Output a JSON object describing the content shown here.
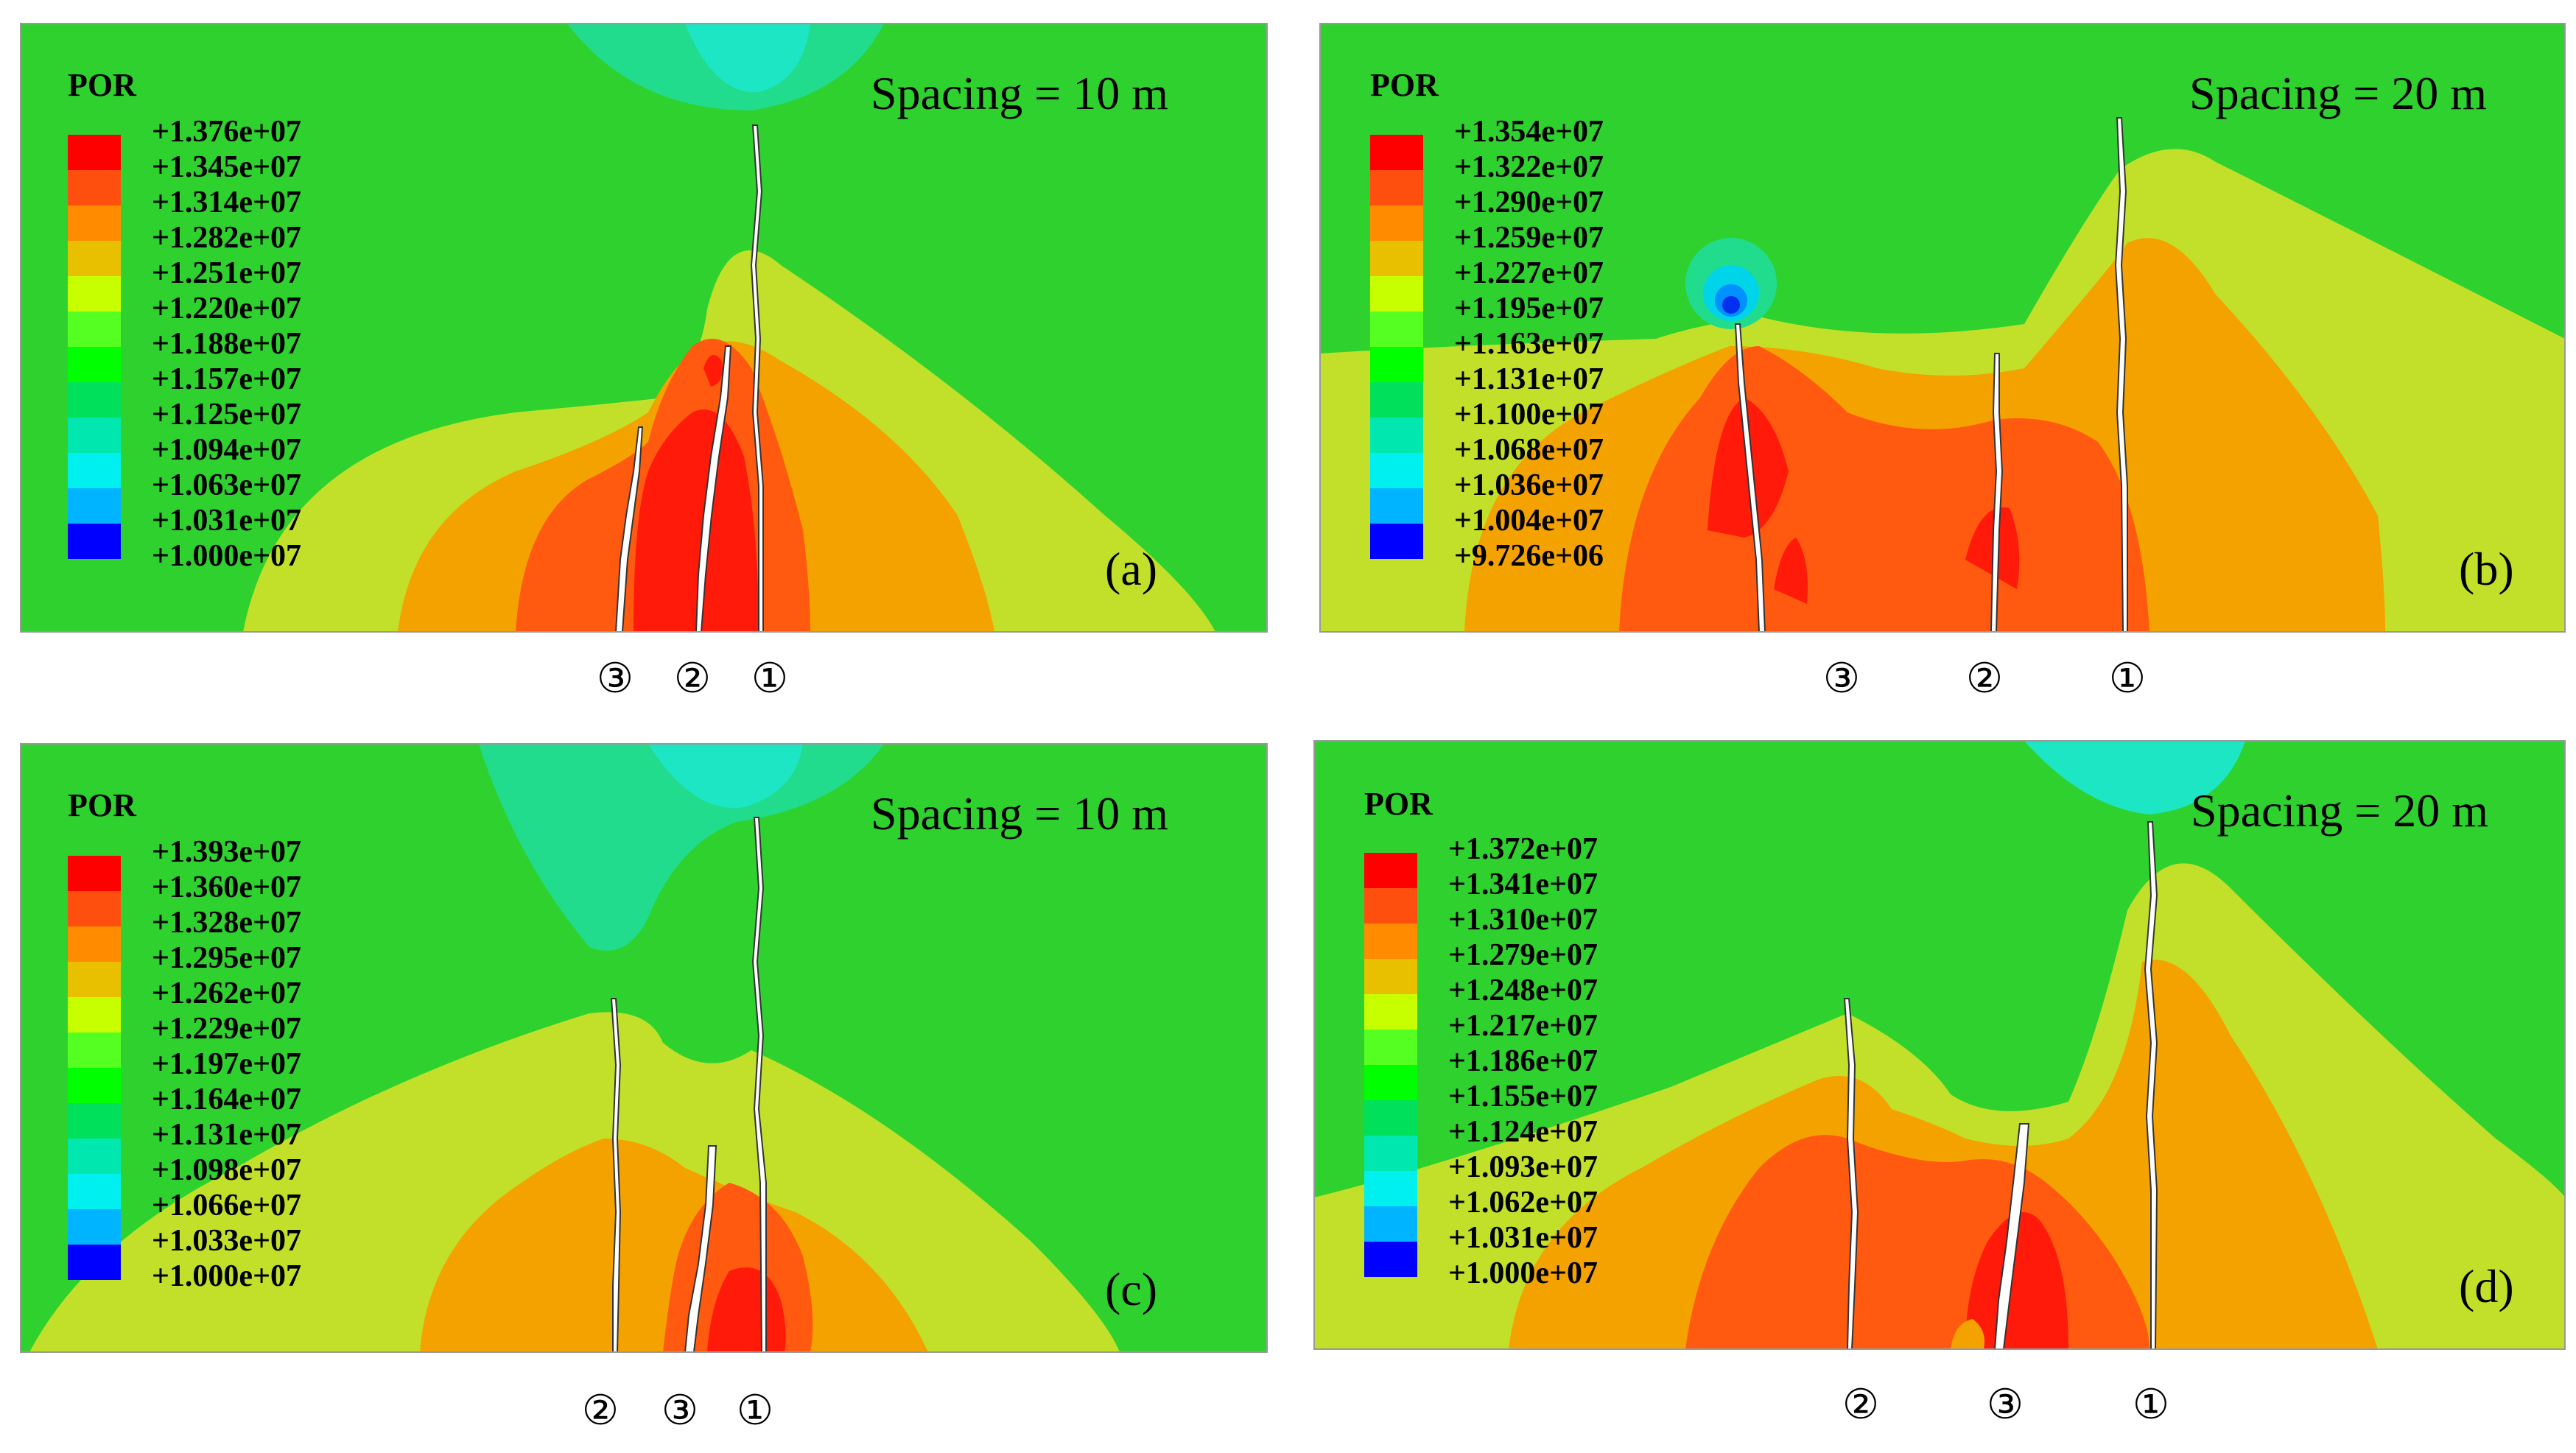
{
  "colors": {
    "background_green": "#2fd12f",
    "legend_scale": [
      "#ff0000",
      "#ff4f0f",
      "#ff8c00",
      "#e8c000",
      "#c8ff00",
      "#55ff22",
      "#00ff00",
      "#00e05a",
      "#00e8b0",
      "#00f0f0",
      "#00b4ff",
      "#0050ff",
      "#0000ff"
    ]
  },
  "panels": [
    {
      "label": "(a)",
      "spacing_text": "Spacing = 10 m",
      "legend_title": "POR",
      "legend_values": [
        "+1.376e+07",
        "+1.345e+07",
        "+1.314e+07",
        "+1.282e+07",
        "+1.251e+07",
        "+1.220e+07",
        "+1.188e+07",
        "+1.157e+07",
        "+1.125e+07",
        "+1.094e+07",
        "+1.063e+07",
        "+1.031e+07",
        "+1.000e+07"
      ],
      "fracture_labels": [
        "③",
        "②",
        "①"
      ]
    },
    {
      "label": "(b)",
      "spacing_text": "Spacing = 20 m",
      "legend_title": "POR",
      "legend_values": [
        "+1.354e+07",
        "+1.322e+07",
        "+1.290e+07",
        "+1.259e+07",
        "+1.227e+07",
        "+1.195e+07",
        "+1.163e+07",
        "+1.131e+07",
        "+1.100e+07",
        "+1.068e+07",
        "+1.036e+07",
        "+1.004e+07",
        "+9.726e+06"
      ],
      "fracture_labels": [
        "③",
        "②",
        "①"
      ]
    },
    {
      "label": "(c)",
      "spacing_text": "Spacing = 10 m",
      "legend_title": "POR",
      "legend_values": [
        "+1.393e+07",
        "+1.360e+07",
        "+1.328e+07",
        "+1.295e+07",
        "+1.262e+07",
        "+1.229e+07",
        "+1.197e+07",
        "+1.164e+07",
        "+1.131e+07",
        "+1.098e+07",
        "+1.066e+07",
        "+1.033e+07",
        "+1.000e+07"
      ],
      "fracture_labels": [
        "②",
        "③",
        "①"
      ]
    },
    {
      "label": "(d)",
      "spacing_text": "Spacing = 20 m",
      "legend_title": "POR",
      "legend_values": [
        "+1.372e+07",
        "+1.341e+07",
        "+1.310e+07",
        "+1.279e+07",
        "+1.248e+07",
        "+1.217e+07",
        "+1.186e+07",
        "+1.155e+07",
        "+1.124e+07",
        "+1.093e+07",
        "+1.062e+07",
        "+1.031e+07",
        "+1.000e+07"
      ],
      "fracture_labels": [
        "②",
        "③",
        "①"
      ]
    }
  ]
}
